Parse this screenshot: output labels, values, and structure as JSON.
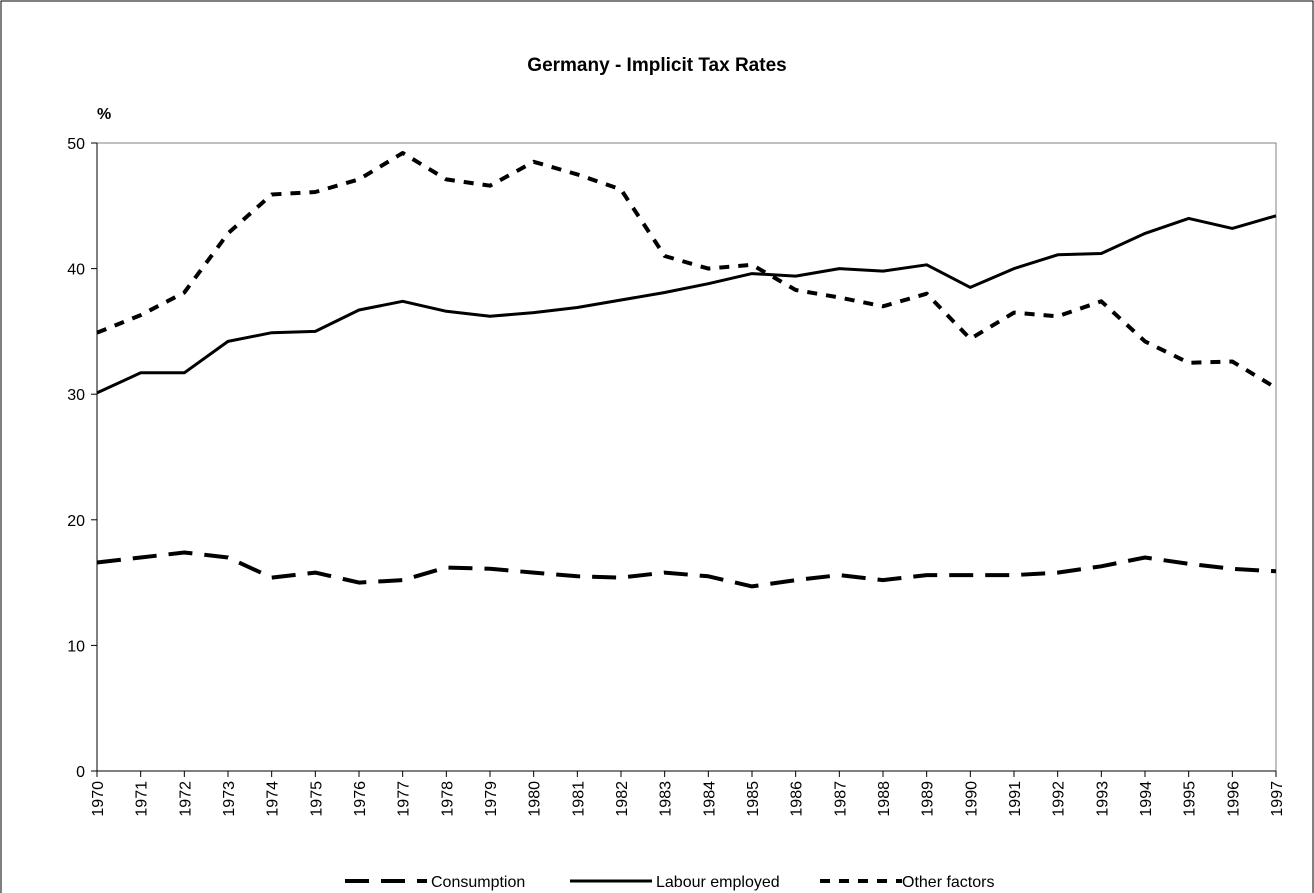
{
  "chart_data": {
    "type": "line",
    "title": "Germany - Implicit Tax Rates",
    "y_label": "%",
    "categories": [
      "1970",
      "1971",
      "1972",
      "1973",
      "1974",
      "1975",
      "1976",
      "1977",
      "1978",
      "1979",
      "1980",
      "1981",
      "1982",
      "1983",
      "1984",
      "1985",
      "1986",
      "1987",
      "1988",
      "1989",
      "1990",
      "1991",
      "1992",
      "1993",
      "1994",
      "1995",
      "1996",
      "1997"
    ],
    "series": [
      {
        "name": "Consumption",
        "color": "#000000",
        "dash": "long",
        "values": [
          16.6,
          17.0,
          17.4,
          17.0,
          15.4,
          15.8,
          15.0,
          15.2,
          16.2,
          16.1,
          15.8,
          15.5,
          15.4,
          15.8,
          15.5,
          14.7,
          15.2,
          15.6,
          15.2,
          15.6,
          15.6,
          15.6,
          15.8,
          16.3,
          17.0,
          16.5,
          16.1,
          15.9
        ]
      },
      {
        "name": "Labour employed",
        "color": "#000000",
        "dash": "solid",
        "values": [
          30.1,
          31.7,
          31.7,
          34.2,
          34.9,
          35.0,
          36.7,
          37.4,
          36.6,
          36.2,
          36.5,
          36.9,
          37.5,
          38.1,
          38.8,
          39.6,
          39.4,
          40.0,
          39.8,
          40.3,
          38.5,
          40.0,
          41.1,
          41.2,
          42.8,
          44.0,
          43.2,
          44.2
        ]
      },
      {
        "name": "Other factors",
        "color": "#000000",
        "dash": "short",
        "values": [
          34.9,
          36.3,
          38.1,
          42.8,
          45.9,
          46.1,
          47.1,
          49.2,
          47.1,
          46.6,
          48.5,
          47.5,
          46.3,
          41.0,
          40.0,
          40.3,
          38.3,
          37.7,
          37.0,
          38.0,
          34.4,
          36.5,
          36.2,
          37.4,
          34.2,
          32.5,
          32.6,
          30.5
        ]
      }
    ],
    "ylim": [
      0,
      50
    ],
    "yticks": [
      0,
      10,
      20,
      30,
      40,
      50
    ],
    "grid": false,
    "legend": "bottom"
  }
}
